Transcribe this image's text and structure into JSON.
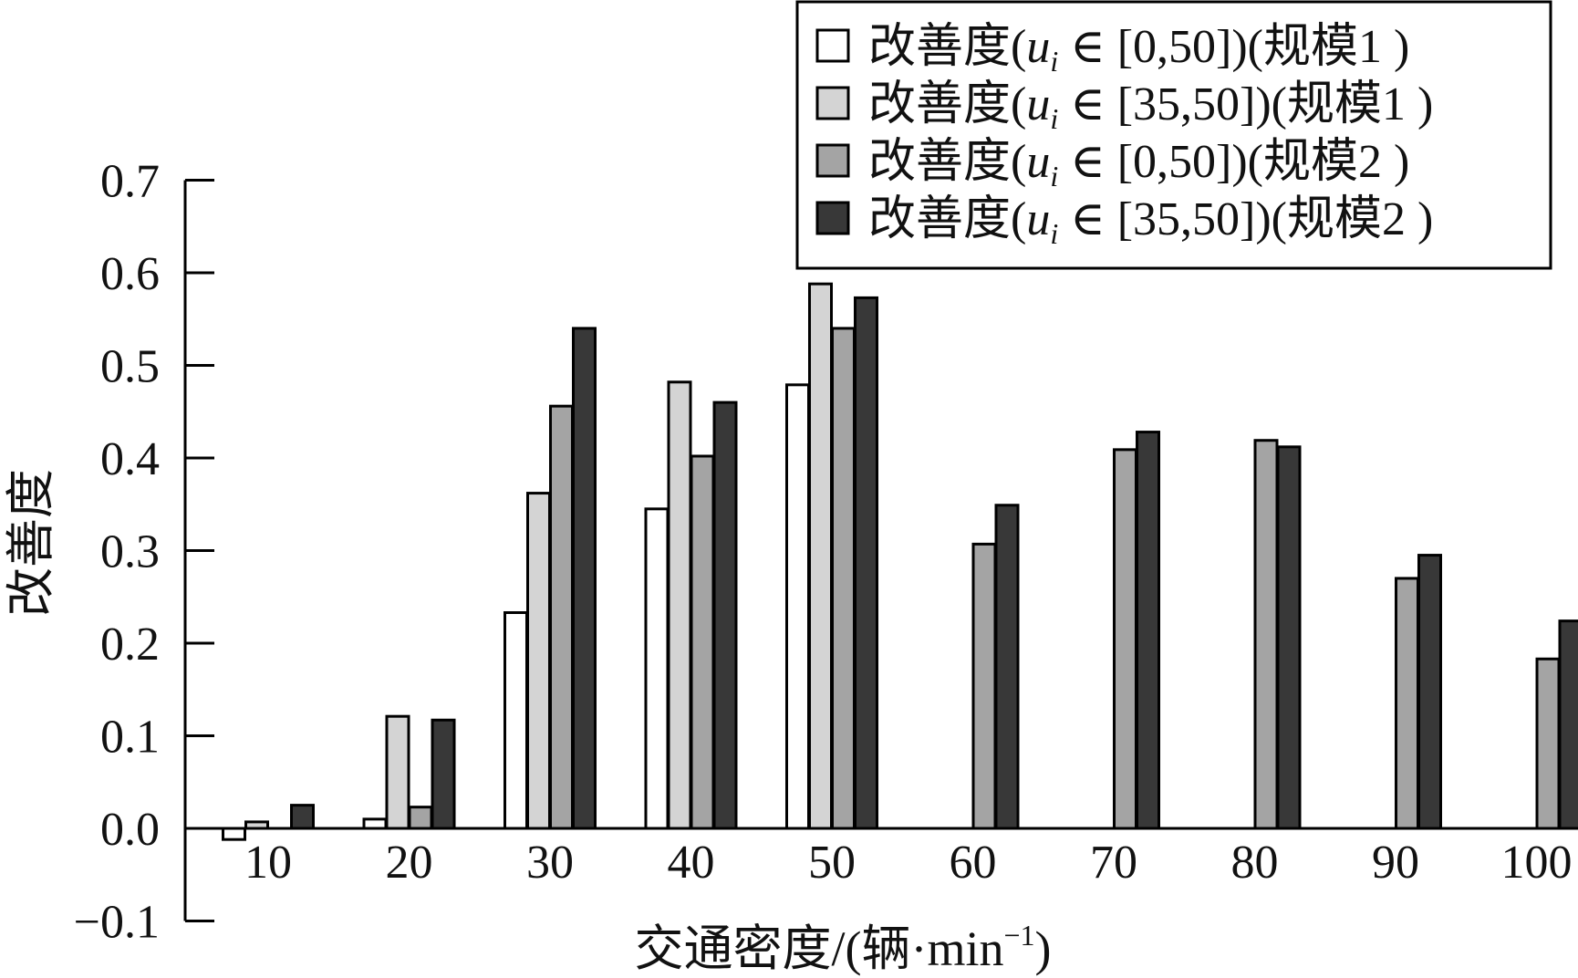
{
  "chart_data": {
    "type": "bar",
    "title": "",
    "xlabel": "交通密度/(辆·min",
    "xlabel_sup": "−1",
    "xlabel_end": ")",
    "ylabel": "改善度",
    "ylim": [
      -0.1,
      0.7
    ],
    "yticks": [
      "−0.1",
      "0.0",
      "0.1",
      "0.2",
      "0.3",
      "0.4",
      "0.5",
      "0.6",
      "0.7"
    ],
    "ytick_values": [
      -0.1,
      0.0,
      0.1,
      0.2,
      0.3,
      0.4,
      0.5,
      0.6,
      0.7
    ],
    "categories": [
      "10",
      "20",
      "30",
      "40",
      "50",
      "60",
      "70",
      "80",
      "90",
      "100"
    ],
    "x_values": [
      10,
      20,
      30,
      40,
      50,
      60,
      70,
      80,
      90,
      100
    ],
    "legend_position": "top-right",
    "series": [
      {
        "name": "改善度(ui∈[0,50])(规模1 )",
        "legend": {
          "prefix": "改善度(",
          "var": "u",
          "sub": "i",
          "rest": " ∈ [0,50])(规模1 )"
        },
        "color": "#ffffff",
        "values": [
          -0.012,
          0.01,
          0.233,
          0.345,
          0.479,
          null,
          null,
          null,
          null,
          null
        ]
      },
      {
        "name": "改善度(ui∈[35,50])(规模1 )",
        "legend": {
          "prefix": "改善度(",
          "var": "u",
          "sub": "i",
          "rest": " ∈ [35,50])(规模1 )"
        },
        "color": "#d4d4d4",
        "values": [
          0.007,
          0.121,
          0.362,
          0.482,
          0.588,
          null,
          null,
          null,
          null,
          null
        ]
      },
      {
        "name": "改善度(ui∈[0,50])(规模2 )",
        "legend": {
          "prefix": "改善度(",
          "var": "u",
          "sub": "i",
          "rest": " ∈ [0,50])(规模2 )"
        },
        "color": "#a4a4a4",
        "values": [
          null,
          0.023,
          0.456,
          0.402,
          0.54,
          0.307,
          0.409,
          0.419,
          0.27,
          0.183
        ]
      },
      {
        "name": "改善度(ui∈[35,50])(规模2 )",
        "legend": {
          "prefix": "改善度(",
          "var": "u",
          "sub": "i",
          "rest": " ∈ [35,50])(规模2 )"
        },
        "color": "#383838",
        "values": [
          0.025,
          0.117,
          0.54,
          0.46,
          0.573,
          0.349,
          0.428,
          0.412,
          0.295,
          0.224
        ]
      }
    ]
  }
}
